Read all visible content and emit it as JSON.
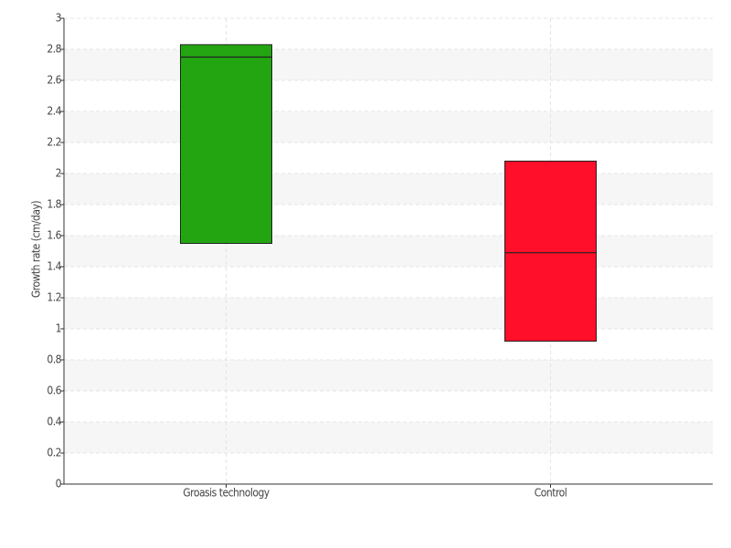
{
  "chart_data": {
    "type": "box",
    "y_label": "Growth rate (cm/day)",
    "categories": [
      "Groasis technology",
      "Control"
    ],
    "boxes": [
      {
        "q1": 1.55,
        "median": 2.75,
        "q3": 2.83,
        "color": "#22a511"
      },
      {
        "q1": 0.92,
        "median": 1.49,
        "q3": 2.08,
        "color": "#ff0f2a"
      }
    ],
    "ylim": [
      0,
      3
    ],
    "yticks": [
      0,
      0.2,
      0.4,
      0.6,
      0.8,
      1,
      1.2,
      1.4,
      1.6,
      1.8,
      2,
      2.2,
      2.4,
      2.6,
      2.8,
      3
    ],
    "grid": true
  }
}
